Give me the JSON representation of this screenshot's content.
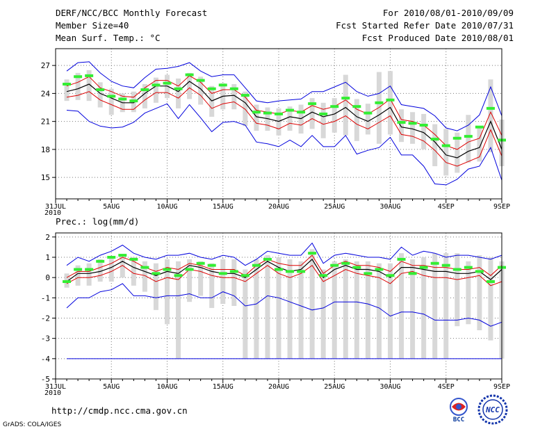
{
  "header": {
    "title": "DERF/NCC/BCC Monthly Forecast",
    "member_size": "Member Size=40",
    "variable": "Mean Surf. Temp.: °C",
    "period": "For 2010/08/01-2010/09/09",
    "started": "Fcst Started Refer Date 2010/07/31",
    "produced": "Fcst Produced Date 2010/08/01"
  },
  "footer": {
    "url": "http://cmdp.ncc.cma.gov.cn",
    "credit": "GrADS: COLA/IGES",
    "logo_bcc": "BCC",
    "logo_ncc": "NCC"
  },
  "colors": {
    "mean": "#000000",
    "spread": "#dd0000",
    "extreme": "#0000dd",
    "box": "#d8d8d8",
    "median": "#33ee33",
    "grid": "#777777"
  },
  "chart_data": [
    {
      "type": "box-line",
      "title": "Mean Surf. Temp.: °C",
      "x_ticks": [
        "31JUL",
        "5AUG",
        "10AUG",
        "15AUG",
        "20AUG",
        "25AUG",
        "30AUG",
        "4SEP",
        "9SEP"
      ],
      "x_tick_days": [
        0,
        5,
        10,
        15,
        20,
        25,
        30,
        35,
        40
      ],
      "x_year_label": "2010",
      "ylim": [
        12.7,
        28.8
      ],
      "y_ticks": [
        15,
        18,
        21,
        24,
        27
      ],
      "days": [
        1,
        2,
        3,
        4,
        5,
        6,
        7,
        8,
        9,
        10,
        11,
        12,
        13,
        14,
        15,
        16,
        17,
        18,
        19,
        20,
        21,
        22,
        23,
        24,
        25,
        26,
        27,
        28,
        29,
        30,
        31,
        32,
        33,
        34,
        35,
        36,
        37,
        38,
        39,
        40
      ],
      "mean": [
        24.2,
        24.5,
        25.0,
        24.0,
        23.5,
        23.0,
        23.0,
        24.0,
        24.8,
        24.8,
        24.2,
        25.3,
        24.5,
        23.2,
        23.7,
        23.8,
        23.0,
        21.5,
        21.3,
        21.0,
        21.5,
        21.3,
        22.0,
        21.5,
        21.8,
        22.5,
        21.5,
        21.0,
        21.7,
        22.5,
        20.4,
        20.2,
        19.8,
        18.8,
        17.4,
        17.1,
        17.8,
        18.2,
        21.0,
        18.0
      ],
      "upper_sd": [
        24.8,
        25.2,
        25.8,
        24.6,
        24.2,
        23.7,
        23.6,
        24.6,
        25.4,
        25.4,
        24.8,
        25.9,
        25.2,
        24.0,
        24.4,
        24.4,
        23.6,
        22.2,
        22.0,
        21.8,
        22.2,
        22.0,
        22.7,
        22.3,
        22.6,
        23.3,
        22.3,
        21.8,
        22.5,
        23.4,
        21.2,
        21.0,
        20.6,
        19.6,
        18.4,
        18.0,
        18.8,
        19.2,
        22.0,
        19.5
      ],
      "lower_sd": [
        23.6,
        23.8,
        24.2,
        23.3,
        22.8,
        22.3,
        22.3,
        23.3,
        24.1,
        24.1,
        23.5,
        24.6,
        23.8,
        22.4,
        22.9,
        23.1,
        22.3,
        20.8,
        20.6,
        20.2,
        20.8,
        20.6,
        21.3,
        20.7,
        21.0,
        21.6,
        20.7,
        20.2,
        20.9,
        21.6,
        19.6,
        19.4,
        18.9,
        17.9,
        16.6,
        16.2,
        16.7,
        17.2,
        20.1,
        17.3
      ],
      "max": [
        26.4,
        27.3,
        27.4,
        26.2,
        25.3,
        24.8,
        24.6,
        25.7,
        26.6,
        26.7,
        26.9,
        27.3,
        26.4,
        25.8,
        26.0,
        26.0,
        24.6,
        23.2,
        23.0,
        23.2,
        23.3,
        23.4,
        24.2,
        24.2,
        24.7,
        25.2,
        24.2,
        23.7,
        24.0,
        24.8,
        22.8,
        22.6,
        22.4,
        21.6,
        20.3,
        20.0,
        20.6,
        21.7,
        24.7,
        21.6
      ],
      "min": [
        22.2,
        22.1,
        21.0,
        20.5,
        20.3,
        20.4,
        20.9,
        21.9,
        22.4,
        22.9,
        21.3,
        22.8,
        21.4,
        19.9,
        20.9,
        21.0,
        20.6,
        18.8,
        18.6,
        18.3,
        19.0,
        18.3,
        19.5,
        18.3,
        18.3,
        19.5,
        17.5,
        17.9,
        18.2,
        19.3,
        17.4,
        17.4,
        16.2,
        14.3,
        14.2,
        14.8,
        15.9,
        16.2,
        18.2,
        14.7
      ],
      "box_high": [
        25.5,
        26.2,
        26.5,
        25.2,
        24.5,
        24.0,
        24.2,
        25.0,
        25.7,
        26.0,
        25.6,
        26.2,
        25.8,
        24.8,
        25.1,
        25.0,
        24.2,
        22.8,
        22.5,
        22.4,
        22.6,
        22.8,
        23.5,
        23.0,
        23.5,
        26.0,
        23.4,
        22.9,
        26.3,
        26.4,
        22.3,
        22.0,
        21.8,
        20.7,
        20.2,
        19.8,
        21.7,
        20.4,
        25.5,
        21.2
      ],
      "box_low": [
        23.2,
        23.3,
        23.2,
        22.5,
        21.7,
        22.0,
        22.0,
        22.4,
        23.0,
        23.5,
        22.4,
        23.4,
        22.8,
        21.5,
        22.3,
        22.3,
        20.5,
        20.0,
        20.0,
        19.5,
        20.0,
        19.7,
        20.2,
        19.2,
        19.8,
        19.5,
        18.9,
        19.6,
        18.6,
        19.6,
        18.8,
        18.6,
        18.0,
        16.2,
        15.2,
        15.5,
        16.6,
        16.7,
        17.7,
        16.2
      ],
      "median": [
        25.0,
        25.8,
        25.9,
        24.4,
        23.7,
        23.4,
        23.2,
        24.4,
        24.9,
        25.1,
        24.5,
        26.0,
        25.4,
        24.5,
        24.9,
        24.5,
        23.8,
        22.0,
        21.9,
        21.8,
        22.2,
        22.0,
        22.9,
        21.8,
        22.6,
        23.5,
        22.6,
        21.9,
        23.0,
        23.3,
        20.9,
        20.8,
        20.6,
        19.1,
        18.4,
        19.2,
        19.4,
        20.4,
        22.4,
        19.0
      ]
    },
    {
      "type": "box-line",
      "title": "Prec.: log(mm/d)",
      "x_ticks": [
        "31JUL",
        "5AUG",
        "10AUG",
        "15AUG",
        "20AUG",
        "25AUG",
        "30AUG",
        "4SEP",
        "9SEP"
      ],
      "x_tick_days": [
        0,
        5,
        10,
        15,
        20,
        25,
        30,
        35,
        40
      ],
      "x_year_label": "2010",
      "ylim": [
        -5,
        2.2
      ],
      "y_ticks": [
        -5,
        -4,
        -3,
        -2,
        -1,
        0,
        1,
        2
      ],
      "days": [
        1,
        2,
        3,
        4,
        5,
        6,
        7,
        8,
        9,
        10,
        11,
        12,
        13,
        14,
        15,
        16,
        17,
        18,
        19,
        20,
        21,
        22,
        23,
        24,
        25,
        26,
        27,
        28,
        29,
        30,
        31,
        32,
        33,
        34,
        35,
        36,
        37,
        38,
        39,
        40
      ],
      "mean": [
        -0.2,
        0.2,
        0.2,
        0.3,
        0.5,
        0.8,
        0.5,
        0.3,
        0.1,
        0.3,
        0.2,
        0.6,
        0.5,
        0.3,
        0.2,
        0.2,
        0.0,
        0.4,
        0.8,
        0.5,
        0.3,
        0.4,
        0.9,
        0.0,
        0.4,
        0.6,
        0.4,
        0.4,
        0.3,
        0.0,
        0.5,
        0.5,
        0.4,
        0.3,
        0.3,
        0.2,
        0.2,
        0.3,
        -0.1,
        0.4
      ],
      "upper_sd": [
        0.0,
        0.3,
        0.3,
        0.5,
        0.7,
        1.0,
        0.8,
        0.5,
        0.3,
        0.5,
        0.4,
        0.7,
        0.6,
        0.4,
        0.4,
        0.4,
        0.1,
        0.6,
        0.9,
        0.7,
        0.6,
        0.6,
        1.1,
        0.2,
        0.6,
        0.8,
        0.6,
        0.6,
        0.5,
        0.3,
        0.8,
        0.6,
        0.6,
        0.5,
        0.5,
        0.4,
        0.4,
        0.5,
        0.1,
        0.6
      ],
      "lower_sd": [
        -0.3,
        0.0,
        0.0,
        0.1,
        0.3,
        0.6,
        0.2,
        0.1,
        -0.2,
        0.0,
        -0.1,
        0.4,
        0.3,
        0.1,
        0.0,
        0.0,
        -0.2,
        0.2,
        0.6,
        0.2,
        0.0,
        0.2,
        0.6,
        -0.2,
        0.1,
        0.4,
        0.2,
        0.1,
        0.0,
        -0.3,
        0.2,
        0.3,
        0.1,
        0.0,
        0.0,
        -0.1,
        0.0,
        0.1,
        -0.4,
        -0.2
      ],
      "max": [
        0.6,
        1.0,
        0.8,
        1.1,
        1.3,
        1.6,
        1.2,
        1.0,
        0.9,
        1.1,
        1.1,
        1.2,
        1.0,
        0.9,
        1.1,
        1.0,
        0.6,
        0.9,
        1.3,
        1.2,
        1.1,
        1.1,
        1.7,
        0.7,
        1.1,
        1.2,
        1.1,
        1.0,
        1.0,
        0.9,
        1.5,
        1.1,
        1.3,
        1.2,
        1.0,
        1.1,
        1.1,
        1.0,
        0.9,
        1.1
      ],
      "min": [
        -1.5,
        -1.0,
        -1.0,
        -0.7,
        -0.6,
        -0.3,
        -0.9,
        -0.9,
        -1.0,
        -0.9,
        -0.9,
        -0.8,
        -1.0,
        -1.0,
        -0.7,
        -0.9,
        -1.4,
        -1.3,
        -0.9,
        -1.0,
        -1.2,
        -1.4,
        -1.6,
        -1.5,
        -1.2,
        -1.2,
        -1.2,
        -1.3,
        -1.5,
        -1.9,
        -1.7,
        -1.7,
        -1.8,
        -2.1,
        -2.1,
        -2.1,
        -2.0,
        -2.1,
        -2.4,
        -2.2
      ],
      "box_high": [
        0.2,
        0.6,
        0.7,
        0.9,
        1.0,
        1.1,
        1.0,
        0.8,
        0.7,
        0.9,
        0.8,
        0.9,
        0.8,
        0.7,
        0.9,
        0.9,
        0.4,
        0.9,
        1.1,
        1.0,
        0.9,
        0.8,
        1.4,
        0.4,
        0.8,
        0.9,
        0.8,
        0.8,
        0.7,
        0.7,
        1.2,
        0.9,
        1.0,
        1.2,
        1.2,
        1.2,
        0.8,
        1.1,
        1.0,
        0.8
      ],
      "box_low": [
        -0.5,
        -0.4,
        -0.4,
        -0.2,
        -0.2,
        0.0,
        -0.4,
        -0.7,
        -1.6,
        -2.3,
        -4.0,
        -1.2,
        -0.9,
        -1.5,
        -1.3,
        -1.4,
        -4.0,
        -4.0,
        -4.0,
        -4.0,
        -4.0,
        -4.0,
        -4.0,
        -4.0,
        -4.0,
        -4.0,
        -4.0,
        -4.0,
        -4.0,
        -4.0,
        -4.0,
        -4.0,
        -4.0,
        -4.0,
        -4.0,
        -2.4,
        -2.3,
        -2.6,
        -3.1,
        -4.0
      ],
      "median": [
        -0.2,
        0.4,
        0.4,
        0.8,
        1.0,
        1.1,
        0.9,
        0.5,
        0.2,
        0.4,
        0.1,
        0.4,
        0.7,
        0.6,
        0.2,
        0.3,
        0.1,
        0.6,
        0.9,
        0.4,
        0.3,
        0.3,
        1.2,
        0.1,
        0.6,
        0.7,
        0.5,
        0.2,
        0.4,
        0.1,
        0.9,
        0.2,
        0.5,
        0.7,
        0.6,
        0.4,
        0.5,
        0.3,
        -0.2,
        0.5
      ],
      "floor": -4.0
    }
  ]
}
